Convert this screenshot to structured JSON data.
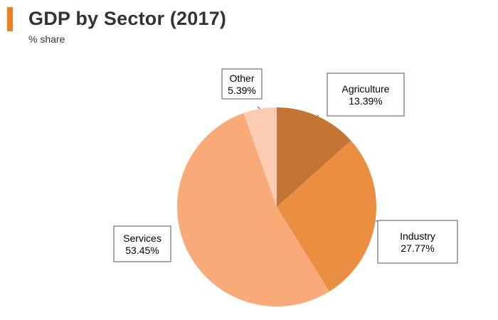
{
  "header": {
    "title": "GDP by Sector (2017)",
    "subtitle": "% share",
    "accent_color": "#f07f22"
  },
  "chart_data": {
    "type": "pie",
    "title": "GDP by Sector (2017)",
    "subtitle": "% share",
    "start_angle_deg": 0,
    "direction": "clockwise",
    "slices": [
      {
        "name": "Agriculture",
        "value": 13.39,
        "label": "13.39%",
        "color": "#c47534"
      },
      {
        "name": "Industry",
        "value": 27.77,
        "label": "27.77%",
        "color": "#ea8e42"
      },
      {
        "name": "Services",
        "value": 53.45,
        "label": "53.45%",
        "color": "#f8ab79"
      },
      {
        "name": "Other",
        "value": 5.39,
        "label": "5.39%",
        "color": "#fbcbb2"
      }
    ]
  }
}
